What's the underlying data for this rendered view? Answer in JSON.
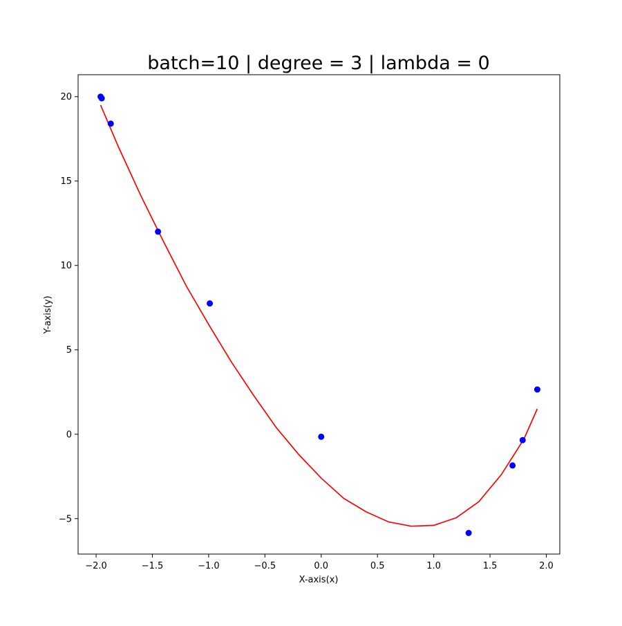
{
  "chart_data": {
    "type": "scatter",
    "title": "batch=10 | degree = 3 | lambda = 0",
    "xlabel": "X-axis(x)",
    "ylabel": "Y-axis(y)",
    "xlim": [
      -2.16,
      2.12
    ],
    "ylim": [
      -7.1,
      21.3
    ],
    "xticks": [
      -2.0,
      -1.5,
      -1.0,
      -0.5,
      0.0,
      0.5,
      1.0,
      1.5,
      2.0
    ],
    "xtick_labels": [
      "−2.0",
      "−1.5",
      "−1.0",
      "−0.5",
      "0.0",
      "0.5",
      "1.0",
      "1.5",
      "2.0"
    ],
    "yticks": [
      -5,
      0,
      5,
      10,
      15,
      20
    ],
    "ytick_labels": [
      "−5",
      "0",
      "5",
      "10",
      "15",
      "20"
    ],
    "grid": false,
    "series": [
      {
        "kind": "scatter",
        "color": "#0000ff",
        "x": [
          -1.96,
          -1.95,
          -1.87,
          -1.45,
          -0.99,
          0.0,
          1.31,
          1.7,
          1.79,
          1.92
        ],
        "y": [
          20.0,
          19.9,
          18.4,
          12.0,
          7.75,
          -0.15,
          -5.85,
          -1.85,
          -0.35,
          2.65
        ]
      },
      {
        "kind": "line",
        "color": "#ff0000",
        "x": [
          -1.96,
          -1.8,
          -1.6,
          -1.4,
          -1.2,
          -1.0,
          -0.8,
          -0.6,
          -0.4,
          -0.2,
          0.0,
          0.2,
          0.4,
          0.6,
          0.8,
          1.0,
          1.2,
          1.4,
          1.6,
          1.8,
          1.92
        ],
        "y": [
          19.5,
          17.0,
          14.1,
          11.4,
          8.8,
          6.5,
          4.3,
          2.3,
          0.4,
          -1.2,
          -2.6,
          -3.8,
          -4.6,
          -5.2,
          -5.45,
          -5.4,
          -4.95,
          -4.0,
          -2.4,
          -0.3,
          1.5
        ]
      }
    ]
  }
}
